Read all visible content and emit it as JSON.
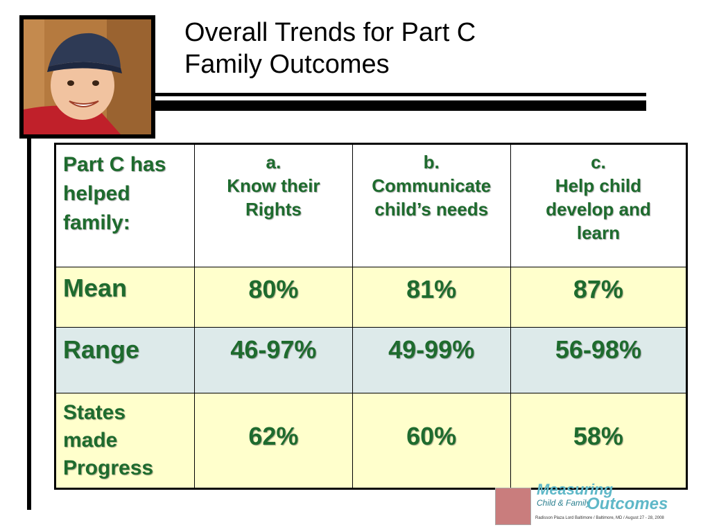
{
  "slide": {
    "title_line1": "Overall Trends for Part C",
    "title_line2": "Family Outcomes"
  },
  "table": {
    "header": {
      "label": [
        "Part C has",
        "helped",
        "family:"
      ],
      "columns": [
        {
          "letter": "a.",
          "text": [
            "Know their",
            "Rights"
          ]
        },
        {
          "letter": "b.",
          "text": [
            "Communicate",
            "child’s needs"
          ]
        },
        {
          "letter": "c.",
          "text": [
            "Help child",
            "develop and",
            "learn"
          ]
        }
      ]
    },
    "rows": [
      {
        "label": "Mean",
        "values": [
          "80%",
          "81%",
          "87%"
        ]
      },
      {
        "label": "Range",
        "values": [
          "46-97%",
          "49-99%",
          "56-98%"
        ]
      },
      {
        "label_lines": [
          "States",
          "made",
          "Progress"
        ],
        "values": [
          "62%",
          "60%",
          "58%"
        ]
      }
    ]
  },
  "logo": {
    "line1": "Measuring",
    "line2": "Child & Family",
    "line3": "Outcomes",
    "subtitle": "Radisson Plaza Lord Baltimore  /  Baltimore, MD  /  August 27 - 28, 2008"
  },
  "colors": {
    "text_green": "#1e6b2e",
    "row_yellow": "#ffffcc",
    "row_blue": "#ddeaea"
  }
}
